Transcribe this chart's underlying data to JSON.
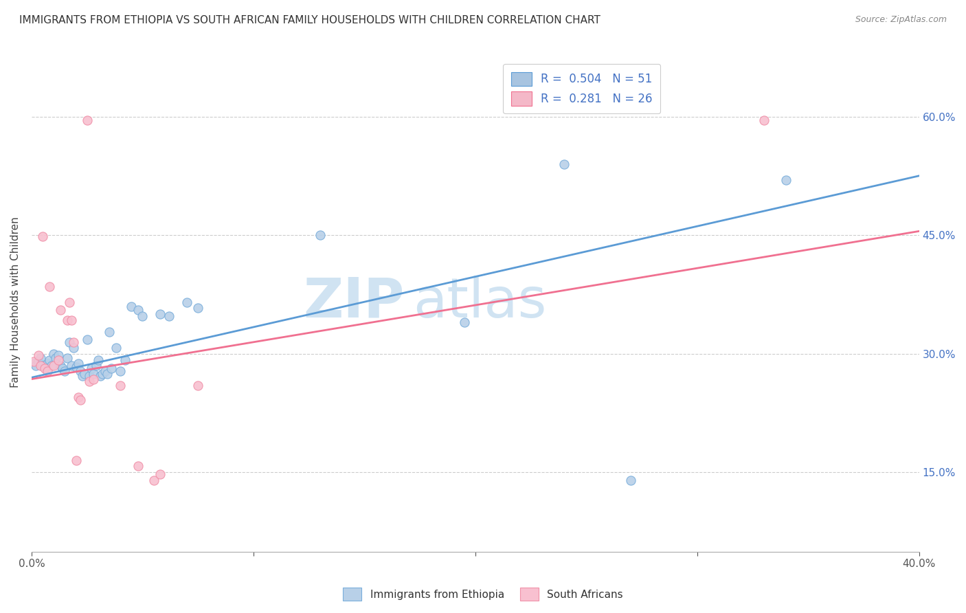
{
  "title": "IMMIGRANTS FROM ETHIOPIA VS SOUTH AFRICAN FAMILY HOUSEHOLDS WITH CHILDREN CORRELATION CHART",
  "source": "Source: ZipAtlas.com",
  "ylabel": "Family Households with Children",
  "xlim": [
    0.0,
    0.4
  ],
  "ylim": [
    0.05,
    0.68
  ],
  "x_tick_positions": [
    0.0,
    0.1,
    0.2,
    0.3,
    0.4
  ],
  "x_tick_labels": [
    "0.0%",
    "",
    "",
    "",
    "40.0%"
  ],
  "y_tick_positions": [
    0.15,
    0.3,
    0.45,
    0.6
  ],
  "y_tick_labels": [
    "15.0%",
    "30.0%",
    "45.0%",
    "60.0%"
  ],
  "legend_blue_label": "R =  0.504   N = 51",
  "legend_pink_label": "R =  0.281   N = 26",
  "legend_blue_patch_color": "#a8c4e0",
  "legend_pink_patch_color": "#f4b8c8",
  "line_blue_color": "#5b9bd5",
  "line_pink_color": "#f07090",
  "scatter_blue_color": "#b8d0e8",
  "scatter_pink_color": "#f8c0d0",
  "scatter_blue_edge": "#7aaedb",
  "scatter_pink_edge": "#f090a8",
  "watermark_text": "ZIPatlas",
  "watermark_color": "#c8dff0",
  "bottom_legend_blue": "Immigrants from Ethiopia",
  "bottom_legend_pink": "South Africans",
  "blue_line_x0": 0.0,
  "blue_line_x1": 0.4,
  "blue_line_y0": 0.27,
  "blue_line_y1": 0.525,
  "pink_line_x0": 0.0,
  "pink_line_x1": 0.4,
  "pink_line_y0": 0.268,
  "pink_line_y1": 0.455,
  "blue_points": [
    [
      0.001,
      0.288
    ],
    [
      0.002,
      0.285
    ],
    [
      0.003,
      0.29
    ],
    [
      0.004,
      0.295
    ],
    [
      0.005,
      0.285
    ],
    [
      0.006,
      0.283
    ],
    [
      0.007,
      0.288
    ],
    [
      0.008,
      0.292
    ],
    [
      0.009,
      0.285
    ],
    [
      0.01,
      0.3
    ],
    [
      0.011,
      0.295
    ],
    [
      0.012,
      0.298
    ],
    [
      0.013,
      0.285
    ],
    [
      0.014,
      0.282
    ],
    [
      0.015,
      0.278
    ],
    [
      0.016,
      0.295
    ],
    [
      0.017,
      0.315
    ],
    [
      0.018,
      0.285
    ],
    [
      0.019,
      0.308
    ],
    [
      0.02,
      0.283
    ],
    [
      0.021,
      0.288
    ],
    [
      0.022,
      0.278
    ],
    [
      0.023,
      0.272
    ],
    [
      0.024,
      0.275
    ],
    [
      0.025,
      0.318
    ],
    [
      0.026,
      0.272
    ],
    [
      0.027,
      0.282
    ],
    [
      0.028,
      0.275
    ],
    [
      0.029,
      0.285
    ],
    [
      0.03,
      0.292
    ],
    [
      0.031,
      0.272
    ],
    [
      0.032,
      0.275
    ],
    [
      0.033,
      0.278
    ],
    [
      0.034,
      0.275
    ],
    [
      0.035,
      0.328
    ],
    [
      0.036,
      0.282
    ],
    [
      0.038,
      0.308
    ],
    [
      0.04,
      0.278
    ],
    [
      0.042,
      0.292
    ],
    [
      0.045,
      0.36
    ],
    [
      0.048,
      0.355
    ],
    [
      0.05,
      0.348
    ],
    [
      0.058,
      0.35
    ],
    [
      0.062,
      0.348
    ],
    [
      0.07,
      0.365
    ],
    [
      0.075,
      0.358
    ],
    [
      0.13,
      0.45
    ],
    [
      0.195,
      0.34
    ],
    [
      0.24,
      0.54
    ],
    [
      0.27,
      0.14
    ],
    [
      0.34,
      0.52
    ]
  ],
  "pink_points": [
    [
      0.001,
      0.29
    ],
    [
      0.003,
      0.298
    ],
    [
      0.004,
      0.285
    ],
    [
      0.005,
      0.448
    ],
    [
      0.006,
      0.282
    ],
    [
      0.007,
      0.278
    ],
    [
      0.008,
      0.385
    ],
    [
      0.01,
      0.285
    ],
    [
      0.012,
      0.292
    ],
    [
      0.013,
      0.355
    ],
    [
      0.016,
      0.342
    ],
    [
      0.017,
      0.365
    ],
    [
      0.018,
      0.342
    ],
    [
      0.019,
      0.315
    ],
    [
      0.02,
      0.165
    ],
    [
      0.021,
      0.245
    ],
    [
      0.022,
      0.242
    ],
    [
      0.025,
      0.595
    ],
    [
      0.026,
      0.265
    ],
    [
      0.028,
      0.268
    ],
    [
      0.04,
      0.26
    ],
    [
      0.048,
      0.158
    ],
    [
      0.055,
      0.14
    ],
    [
      0.058,
      0.148
    ],
    [
      0.075,
      0.26
    ],
    [
      0.33,
      0.595
    ]
  ]
}
